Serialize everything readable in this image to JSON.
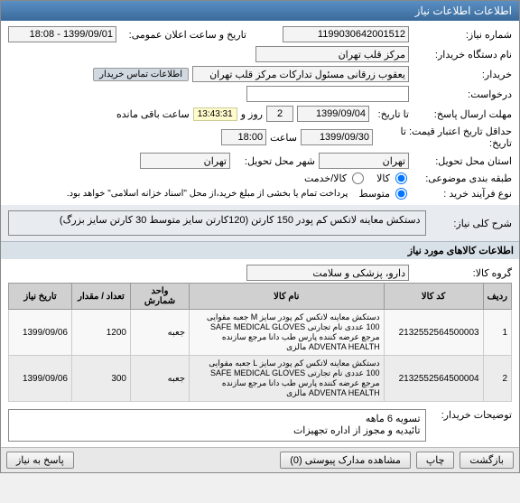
{
  "window": {
    "title": "اطلاعات اطلاعات نیاز"
  },
  "fields": {
    "need_no_lbl": "شماره نیاز:",
    "need_no": "1199030642001512",
    "pub_date_lbl": "تاریخ و ساعت اعلان عمومی:",
    "pub_date": "1399/09/01 - 18:08",
    "buyer_org_lbl": "نام دستگاه خریدار:",
    "buyer_org": "مرکز قلب تهران",
    "buyer_person_lbl": "خریدار:",
    "buyer_person": "یعقوب زرقانی مسئول تدارکات مرکز قلب تهران",
    "contact_badge": "اطلاعات تماس خریدار",
    "request_lbl": "درخواست:",
    "deadline_lbl": "مهلت ارسال پاسخ:",
    "to_date_lbl": "تا تاریخ:",
    "to_date": "1399/09/04",
    "days": "2",
    "days_lbl": "روز و",
    "timer": "13:43:31",
    "timer_lbl": "ساعت باقی مانده",
    "price_valid_lbl": "حداقل تاریخ اعتبار قیمت: تا تاریخ:",
    "price_valid_date": "1399/09/30",
    "time_lbl": "ساعت",
    "price_valid_time": "18:00",
    "deliver_state_lbl": "استان محل تحویل:",
    "deliver_state": "تهران",
    "deliver_city_lbl": "شهر محل تحویل:",
    "deliver_city": "تهران",
    "cat_lbl": "طبقه بندی موضوعی:",
    "cat_goods": "کالا",
    "cat_service": "کالا/خدمت",
    "proc_lbl": "نوع فرآیند خرید :",
    "proc_mid": "متوسط",
    "proc_note": "پرداخت تمام یا بخشی از مبلغ خرید،از محل \"اسناد خزانه اسلامی\" خواهد بود.",
    "desc_lbl": "شرح کلی نیاز:",
    "desc": "دستکش معاینه لاتکس کم پودر 150 کارتن (120کارتن سایز متوسط 30 کارتن سایز بزرگ)",
    "goods_header": "اطلاعات کالاهای مورد نیاز",
    "group_lbl": "گروه کالا:",
    "group": "دارو، پزشکی و سلامت",
    "buyer_note_lbl": "توضیحات خریدار:",
    "buyer_note": "تسویه 6 ماهه\nتائیدیه و مجوز از اداره تجهیزات"
  },
  "table": {
    "headers": {
      "row": "ردیف",
      "code": "کد کالا",
      "name": "نام کالا",
      "unit": "واحد شمارش",
      "qty": "تعداد / مقدار",
      "date": "تاریخ نیاز"
    },
    "rows": [
      {
        "n": "1",
        "code": "2132552564500003",
        "name": "دستکش معاینه لاتکس کم پودر سایز M جعبه مقوایی 100 عددی نام تجارتی SAFE MEDICAL GLOVES مرجع عرضه کننده پارس طب دانا مرجع سازنده ADVENTA HEALTH مالزی",
        "unit": "جعبه",
        "qty": "1200",
        "date": "1399/09/06"
      },
      {
        "n": "2",
        "code": "2132552564500004",
        "name": "دستکش معاینه لاتکس کم پودر سایز L جعبه مقوایی 100 عددی نام تجارتی SAFE MEDICAL GLOVES مرجع عرضه کننده پارس طب دانا مرجع سازنده ADVENTA HEALTH مالزی",
        "unit": "جعبه",
        "qty": "300",
        "date": "1399/09/06"
      }
    ]
  },
  "buttons": {
    "back": "بازگشت",
    "print": "چاپ",
    "attach": "مشاهده مدارک پیوستی (0)",
    "reply": "پاسخ به نیاز"
  }
}
